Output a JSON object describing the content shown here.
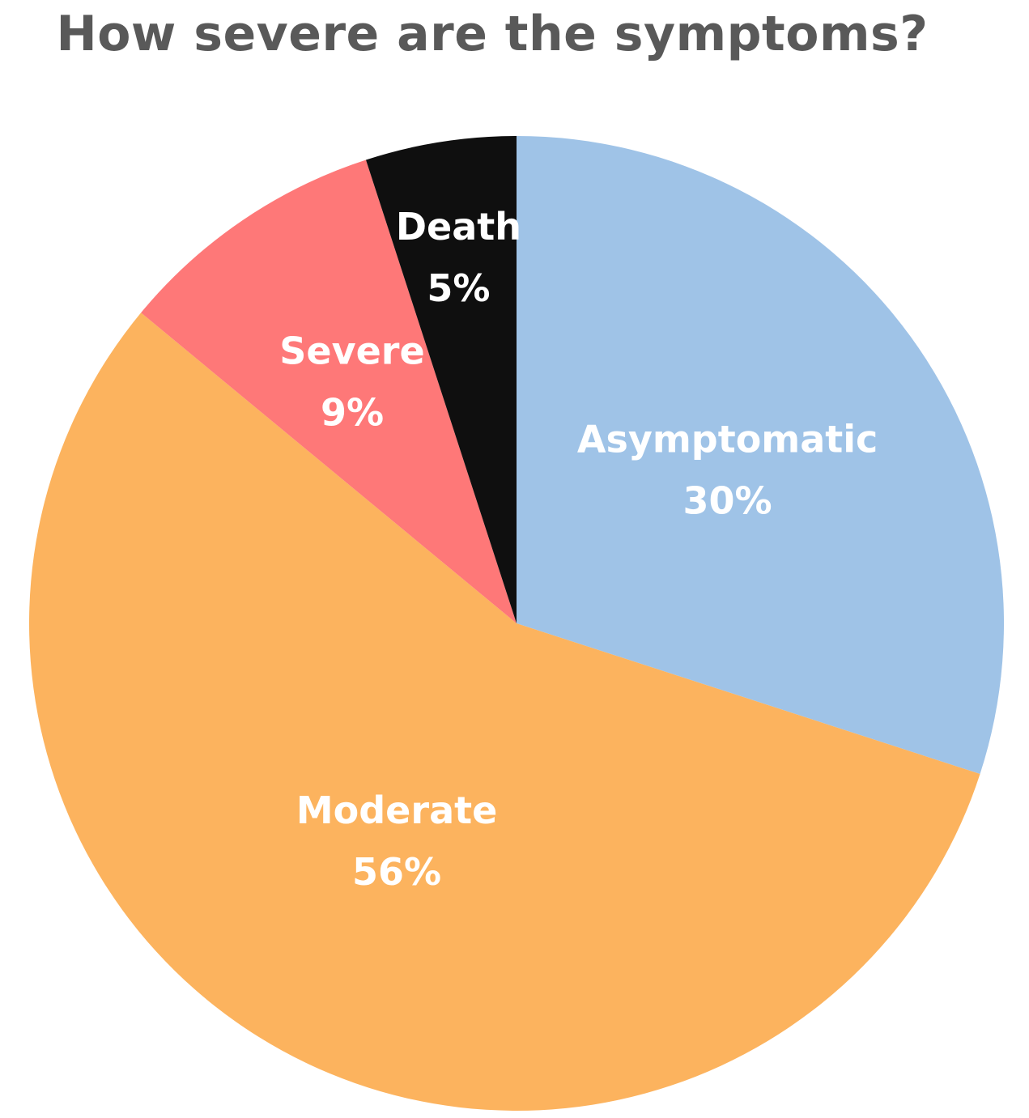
{
  "chart_data": {
    "type": "pie",
    "title": "How severe are the symptoms?",
    "title_color": "#595959",
    "start_angle_deg": 0,
    "direction": "clockwise",
    "legend": "none",
    "slices": [
      {
        "label": "Asymptomatic",
        "value": 30,
        "value_label": "30%",
        "color": "#9FC3E7",
        "label_color": "#ffffff"
      },
      {
        "label": "Moderate",
        "value": 56,
        "value_label": "56%",
        "color": "#FCB35E",
        "label_color": "#ffffff"
      },
      {
        "label": "Severe",
        "value": 9,
        "value_label": "9%",
        "color": "#FE7878",
        "label_color": "#ffffff"
      },
      {
        "label": "Death",
        "value": 5,
        "value_label": "5%",
        "color": "#0F0F0F",
        "label_color": "#ffffff"
      }
    ]
  }
}
